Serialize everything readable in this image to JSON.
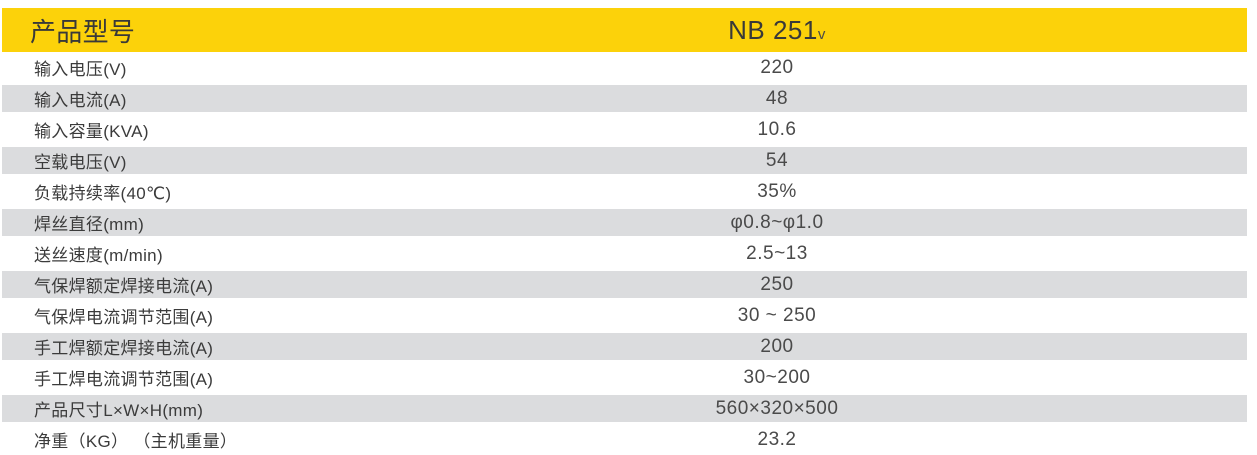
{
  "table": {
    "header": {
      "label": "产品型号",
      "model": "NB 251",
      "model_suffix": "v"
    },
    "rows": [
      {
        "label": "输入电压(V)",
        "value": "220"
      },
      {
        "label": "输入电流(A)",
        "value": "48"
      },
      {
        "label": "输入容量(KVA)",
        "value": "10.6"
      },
      {
        "label": "空载电压(V)",
        "value": "54"
      },
      {
        "label": "负载持续率(40℃)",
        "value": "35%"
      },
      {
        "label": "焊丝直径(mm)",
        "value": "φ0.8~φ1.0"
      },
      {
        "label": "送丝速度(m/min)",
        "value": "2.5~13"
      },
      {
        "label": "气保焊额定焊接电流(A)",
        "value": "250"
      },
      {
        "label": "气保焊电流调节范围(A)",
        "value": "30 ~ 250"
      },
      {
        "label": "手工焊额定焊接电流(A)",
        "value": "200"
      },
      {
        "label": "手工焊电流调节范围(A)",
        "value": "30~200"
      },
      {
        "label": "产品尺寸L×W×H(mm)",
        "value": "560×320×500"
      },
      {
        "label": "净重（KG） （主机重量）",
        "value": "23.2"
      }
    ]
  },
  "colors": {
    "header_bg": "#FCD20A",
    "row_alt_bg": "#DBDCDE",
    "label_text": "#3B3B3B",
    "value_text": "#4A4A4A"
  }
}
